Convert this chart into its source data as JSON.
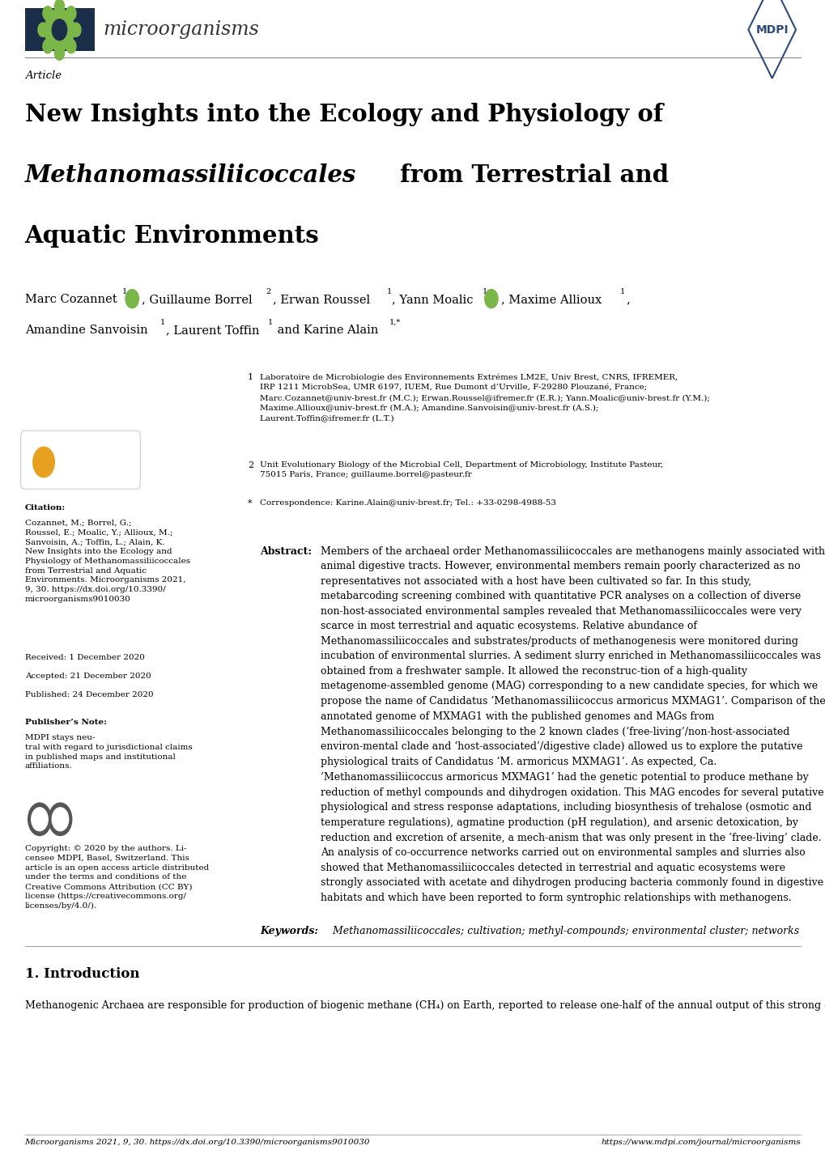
{
  "title_line1": "New Insights into the Ecology and Physiology of",
  "title_line2_italic": "Methanomassiliicoccales",
  "title_line2_normal": " from Terrestrial and",
  "title_line3": "Aquatic Environments",
  "article_label": "Article",
  "journal_name": "microorganisms",
  "received": "Received: 1 December 2020",
  "accepted": "Accepted: 21 December 2020",
  "published": "Published: 24 December 2020",
  "keywords_text": " Methanomassiliicoccales; cultivation; methyl-compounds; environmental cluster; networks",
  "section1_title": "1. Introduction",
  "footer_left": "Microorganisms 2021, 9, 30. https://dx.doi.org/10.3390/microorganisms9010030",
  "footer_right": "https://www.mdpi.com/journal/microorganisms",
  "bg_color": "#ffffff",
  "header_bg": "#1a2e4a",
  "green_color": "#7ab648",
  "mdpi_color": "#2c4a7c",
  "header_line_color": "#888888"
}
